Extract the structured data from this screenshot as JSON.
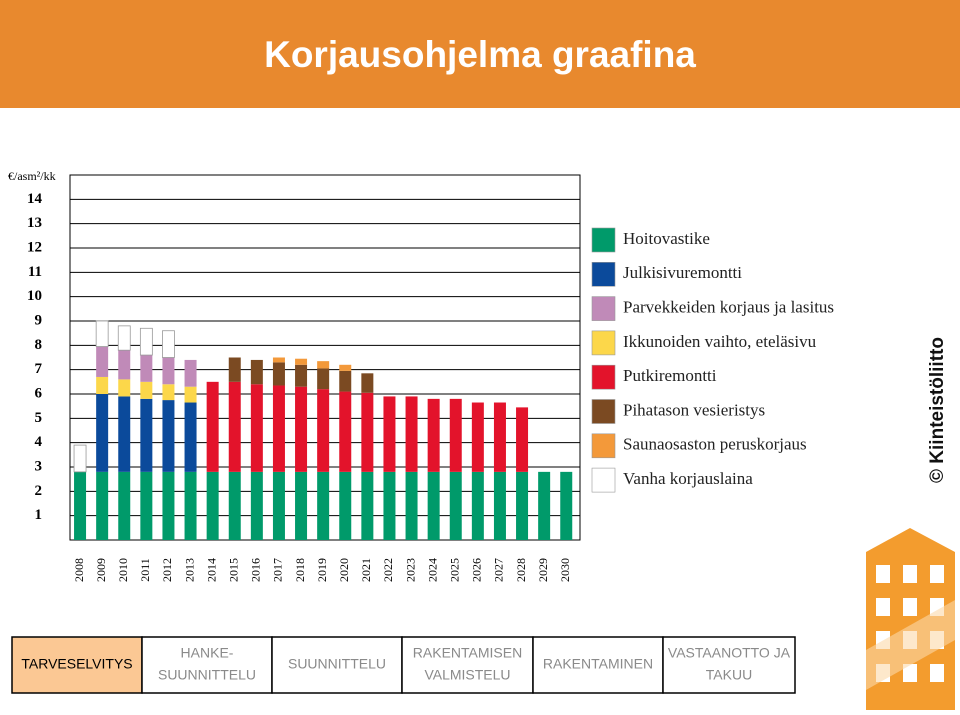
{
  "header": {
    "title": "Korjausohjelma graafina"
  },
  "copyright": "© Kiinteistöliitto",
  "steps": [
    {
      "lines": [
        "TARVESELVITYS"
      ]
    },
    {
      "lines": [
        "HANKE-",
        "SUUNNITTELU"
      ]
    },
    {
      "lines": [
        "SUUNNITTELU"
      ]
    },
    {
      "lines": [
        "RAKENTAMISEN",
        "VALMISTELU"
      ]
    },
    {
      "lines": [
        "RAKENTAMINEN"
      ]
    },
    {
      "lines": [
        "VASTAANOTTO JA",
        "TAKUU"
      ]
    }
  ],
  "active_step": 0,
  "chart_data": {
    "type": "stacked_bar",
    "y_label": "€/asm²/kk",
    "categories": [
      "2008",
      "2009",
      "2010",
      "2011",
      "2012",
      "2013",
      "2014",
      "2015",
      "2016",
      "2017",
      "2018",
      "2019",
      "2020",
      "2021",
      "2022",
      "2023",
      "2024",
      "2025",
      "2026",
      "2027",
      "2028",
      "2029",
      "2030"
    ],
    "ylim": [
      0,
      15
    ],
    "yticks": [
      1,
      2,
      3,
      4,
      5,
      6,
      7,
      8,
      9,
      10,
      11,
      12,
      13,
      14
    ],
    "grid": true,
    "series": [
      {
        "name": "Hoitovastike",
        "color": "#009a6a",
        "values": [
          2.8,
          2.8,
          2.8,
          2.8,
          2.8,
          2.8,
          2.8,
          2.8,
          2.8,
          2.8,
          2.8,
          2.8,
          2.8,
          2.8,
          2.8,
          2.8,
          2.8,
          2.8,
          2.8,
          2.8,
          2.8,
          2.8,
          2.8
        ]
      },
      {
        "name": "Julkisivuremontti",
        "color": "#0b4a9b",
        "values": [
          null,
          3.2,
          3.1,
          3.0,
          2.95,
          2.85,
          null,
          null,
          null,
          null,
          null,
          null,
          null,
          null,
          null,
          null,
          null,
          null,
          null,
          null,
          null,
          null,
          null
        ]
      },
      {
        "name": "Parvekkeiden korjaus ja lasitus",
        "color": "#c08ab8",
        "values": [
          null,
          1.25,
          1.2,
          1.1,
          1.1,
          1.1,
          null,
          null,
          null,
          null,
          null,
          null,
          null,
          null,
          null,
          null,
          null,
          null,
          null,
          null,
          null,
          null,
          null
        ]
      },
      {
        "name": "Ikkunoiden vaihto, eteläsivu",
        "color": "#fcd74a",
        "values": [
          null,
          0.7,
          0.7,
          0.7,
          0.65,
          0.65,
          null,
          null,
          null,
          null,
          null,
          null,
          null,
          null,
          null,
          null,
          null,
          null,
          null,
          null,
          null,
          null,
          null
        ]
      },
      {
        "name": "Putkiremontti",
        "color": "#e3132b",
        "values": [
          null,
          null,
          null,
          null,
          null,
          null,
          3.7,
          3.7,
          3.6,
          3.55,
          3.5,
          3.4,
          3.3,
          3.25,
          3.1,
          3.1,
          3.0,
          3.0,
          2.85,
          2.85,
          2.65,
          null,
          null
        ]
      },
      {
        "name": "Pihatason vesieristys",
        "color": "#7b4a22",
        "values": [
          null,
          null,
          null,
          null,
          null,
          null,
          null,
          1.0,
          1.0,
          0.95,
          0.9,
          0.85,
          0.85,
          0.8,
          null,
          null,
          null,
          null,
          null,
          null,
          null,
          null,
          null
        ]
      },
      {
        "name": "Saunaosaston peruskorjaus",
        "color": "#f3993a",
        "values": [
          null,
          null,
          null,
          null,
          null,
          null,
          null,
          null,
          null,
          0.2,
          0.25,
          0.3,
          0.25,
          null,
          null,
          null,
          null,
          null,
          null,
          null,
          null,
          null,
          null
        ]
      },
      {
        "name": "Vanha korjauslaina",
        "color": "#ffffff",
        "values": [
          1.1,
          1.05,
          1.0,
          1.1,
          1.1,
          null,
          null,
          null,
          null,
          null,
          null,
          null,
          null,
          null,
          null,
          null,
          null,
          null,
          null,
          null,
          null,
          null,
          null
        ]
      }
    ]
  }
}
